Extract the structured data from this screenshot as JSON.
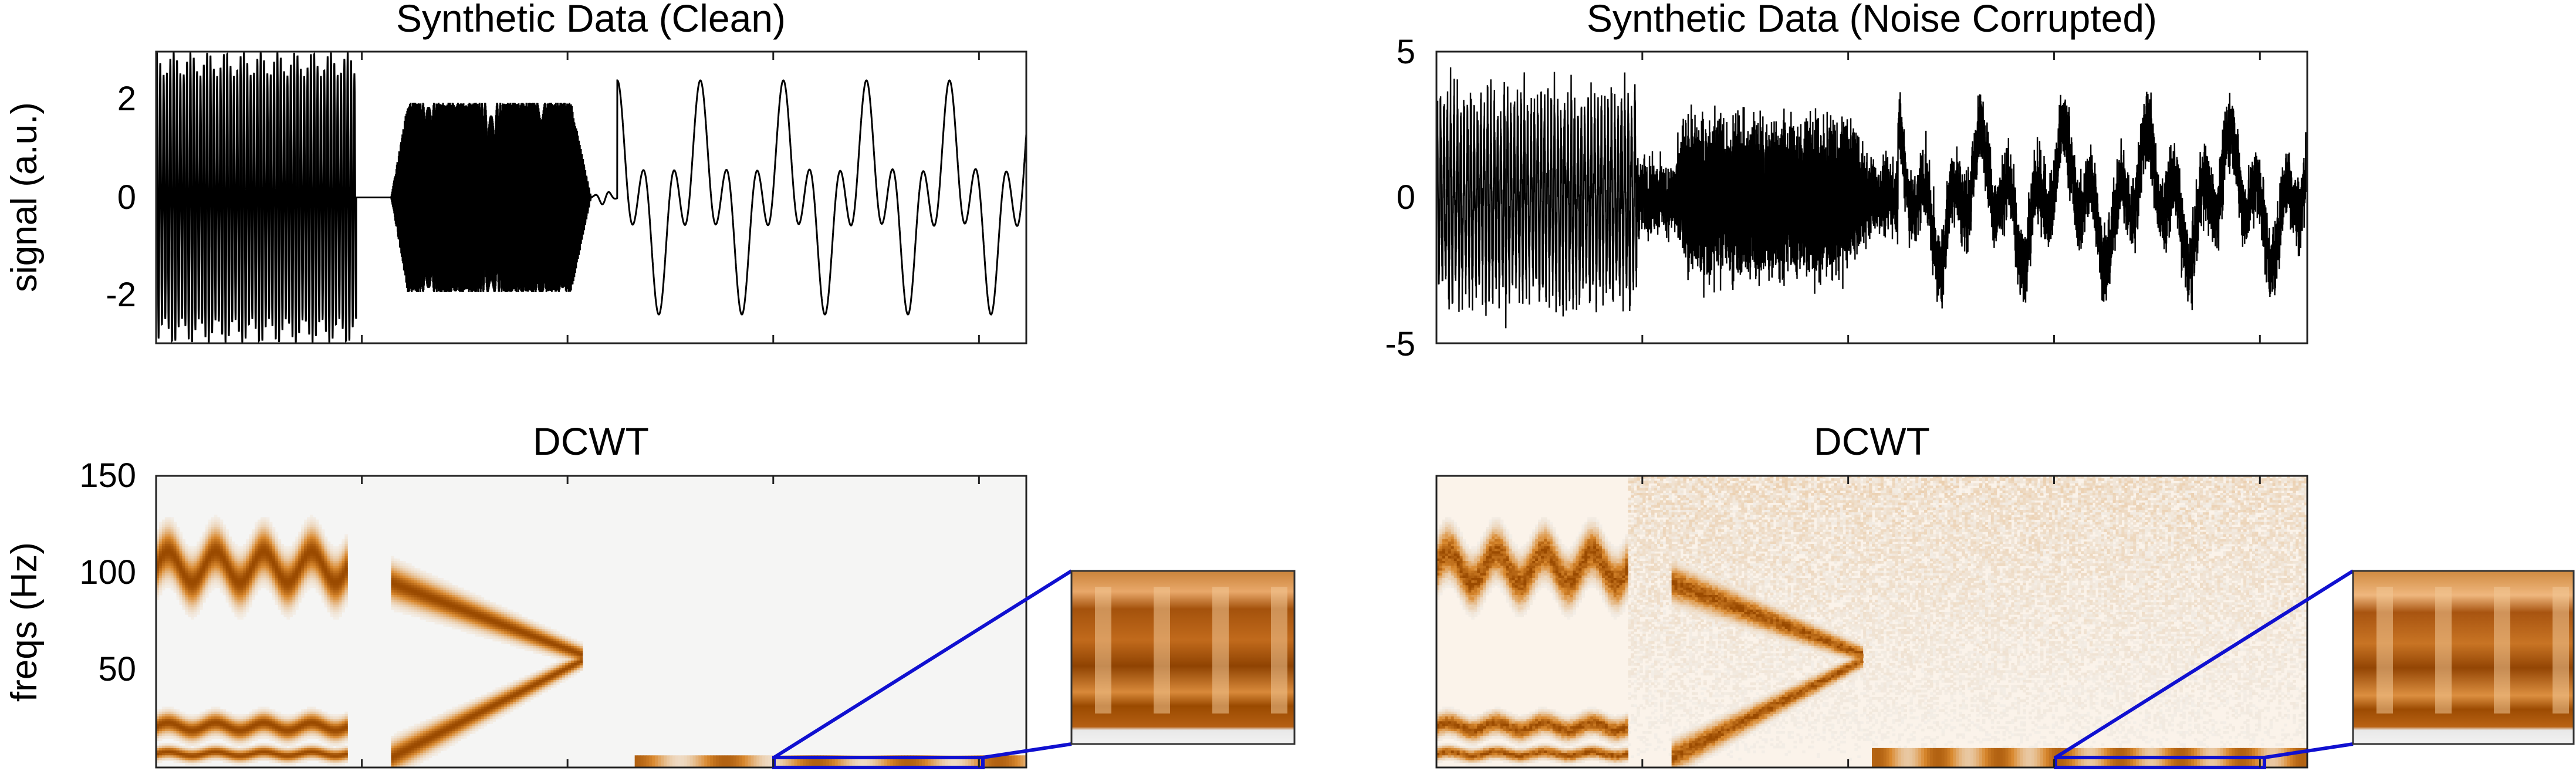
{
  "chart_data": [
    {
      "type": "line",
      "panel": "clean-signal",
      "title": "Synthetic Data (Clean)",
      "ylabel": "signal (a.u.)",
      "ylim": [
        -3,
        3
      ],
      "yticks": [
        "2",
        "0",
        "-2"
      ],
      "segments": [
        {
          "component": "fast AM oscillation",
          "x_frac": [
            0.0,
            0.23
          ],
          "amplitude_range": [
            2.7,
            3.0
          ]
        },
        {
          "component": "chirp burst",
          "x_frac": [
            0.27,
            0.5
          ],
          "amplitude_range": [
            1.8,
            2.0
          ]
        },
        {
          "component": "slow oscillation with peaks",
          "x_frac": [
            0.52,
            1.0
          ],
          "peak": 3.0,
          "trough": -1.5
        }
      ]
    },
    {
      "type": "line",
      "panel": "noisy-signal",
      "title": "Synthetic Data (Noise Corrupted)",
      "ylim": [
        -5,
        5
      ],
      "yticks": [
        "5",
        "0",
        "-5"
      ],
      "noise_amplitude": 2.0
    },
    {
      "type": "heatmap",
      "panel": "clean-dcwt",
      "title": "DCWT",
      "ylabel": "freqs (Hz)",
      "ylim": [
        0,
        150
      ],
      "yticks": [
        "150",
        "100",
        "50"
      ],
      "bands": [
        {
          "x_frac": [
            0.0,
            0.22
          ],
          "freq_center": 103,
          "freq_width": 16,
          "wiggle": 8
        },
        {
          "x_frac": [
            0.0,
            0.22
          ],
          "freq_center": 21,
          "freq_width": 7,
          "wiggle": 2
        },
        {
          "x_frac": [
            0.0,
            0.22
          ],
          "freq_center": 7,
          "freq_width": 4,
          "wiggle": 1
        },
        {
          "x_frac": [
            0.27,
            0.49
          ],
          "freq_start": 95,
          "freq_end": 58,
          "freq_width": 12
        },
        {
          "x_frac": [
            0.27,
            0.49
          ],
          "freq_start": 5,
          "freq_end": 55,
          "freq_width": 10
        }
      ],
      "inset": "zoom"
    },
    {
      "type": "heatmap",
      "panel": "noisy-dcwt",
      "title": "DCWT",
      "ylim": [
        0,
        150
      ],
      "inset": "zoom"
    }
  ],
  "colors": {
    "signal_line": "#000000",
    "heat_background": "#f5f5f4",
    "heat_peak": "#9a4a00",
    "heat_mid": "#d9892f",
    "zoom_box": "#1010d0"
  }
}
